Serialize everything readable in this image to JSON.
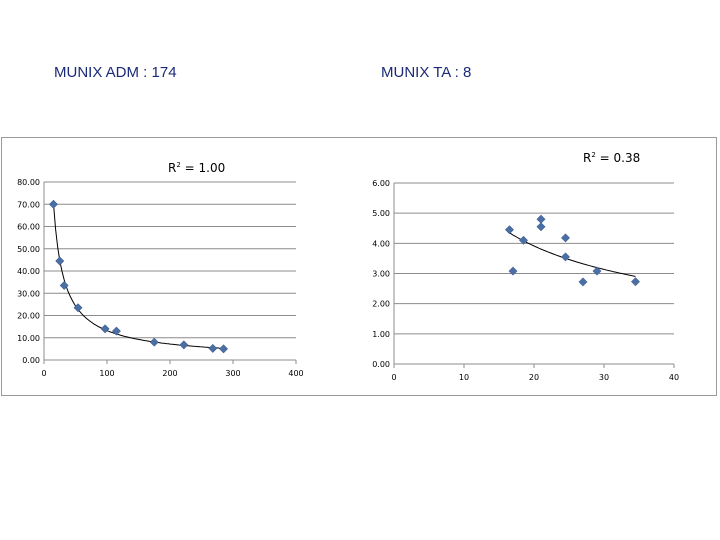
{
  "headings": {
    "left": "MUNIX ADM : 174",
    "right": "MUNIX TA : 8"
  },
  "colors": {
    "marker": "#4a6fa5",
    "grid": "#8c8c8c",
    "trend": "#000000"
  },
  "chart_data": [
    {
      "type": "scatter",
      "title": "",
      "annotation": {
        "prefix": "R",
        "sup": "2",
        "suffix": " = 1.00"
      },
      "xlim": [
        0,
        400
      ],
      "ylim": [
        0,
        80
      ],
      "xticks": [
        "0",
        "100",
        "200",
        "300",
        "400"
      ],
      "yticks": [
        "0.00",
        "10.00",
        "20.00",
        "30.00",
        "40.00",
        "50.00",
        "60.00",
        "70.00",
        "80.00"
      ],
      "grid": true,
      "trendline": "power",
      "points": [
        {
          "x": 15,
          "y": 70
        },
        {
          "x": 25,
          "y": 44.5
        },
        {
          "x": 32,
          "y": 33.5
        },
        {
          "x": 54,
          "y": 23.5
        },
        {
          "x": 97,
          "y": 14
        },
        {
          "x": 115,
          "y": 13
        },
        {
          "x": 175,
          "y": 8
        },
        {
          "x": 222,
          "y": 6.8
        },
        {
          "x": 268,
          "y": 5.2
        },
        {
          "x": 285,
          "y": 5
        }
      ]
    },
    {
      "type": "scatter",
      "title": "",
      "annotation": {
        "prefix": "R",
        "sup": "2",
        "suffix": " = 0.38"
      },
      "xlim": [
        0,
        40
      ],
      "ylim": [
        0,
        6
      ],
      "xticks": [
        "0",
        "10",
        "20",
        "30",
        "40"
      ],
      "yticks": [
        "0.00",
        "1.00",
        "2.00",
        "3.00",
        "4.00",
        "5.00",
        "6.00"
      ],
      "grid": true,
      "trendline": "power",
      "points": [
        {
          "x": 16.5,
          "y": 4.45
        },
        {
          "x": 17,
          "y": 3.08
        },
        {
          "x": 18.5,
          "y": 4.1
        },
        {
          "x": 21,
          "y": 4.8
        },
        {
          "x": 21,
          "y": 4.55
        },
        {
          "x": 24.5,
          "y": 4.18
        },
        {
          "x": 24.5,
          "y": 3.55
        },
        {
          "x": 27,
          "y": 2.72
        },
        {
          "x": 29,
          "y": 3.08
        },
        {
          "x": 34.5,
          "y": 2.73
        }
      ]
    }
  ]
}
